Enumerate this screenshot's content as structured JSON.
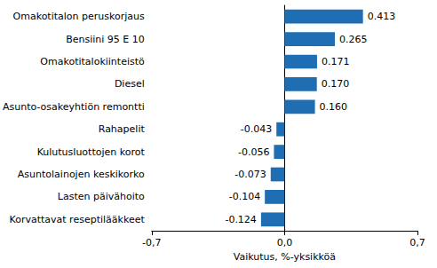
{
  "chart_data": {
    "type": "bar",
    "orientation": "horizontal",
    "x_label": "Vaikutus, %-yksikköä",
    "categories": [
      "Omakotitalon peruskorjaus",
      "Bensiini 95 E 10",
      "Omakotitalokiinteistö",
      "Diesel",
      "Asunto-osakeyhtiön remontti",
      "Rahapelit",
      "Kulutusluottojen korot",
      "Asuntolainojen keskikorko",
      "Lasten päivähoito",
      "Korvattavat reseptilääkkeet"
    ],
    "values": [
      0.413,
      0.265,
      0.171,
      0.17,
      0.16,
      -0.043,
      -0.056,
      -0.073,
      -0.104,
      -0.124
    ],
    "value_labels": [
      "0.413",
      "0.265",
      "0.171",
      "0.170",
      "0.160",
      "-0.043",
      "-0.056",
      "-0.073",
      "-0.104",
      "-0.124"
    ],
    "data_labels": true,
    "color": "#1f6db3",
    "xlim": [
      -0.7,
      0.7
    ],
    "xticks": [
      {
        "value": -0.7,
        "label": "-0,7"
      },
      {
        "value": 0,
        "label": "0,0"
      },
      {
        "value": 0.7,
        "label": "0,7"
      }
    ],
    "grid": false
  }
}
